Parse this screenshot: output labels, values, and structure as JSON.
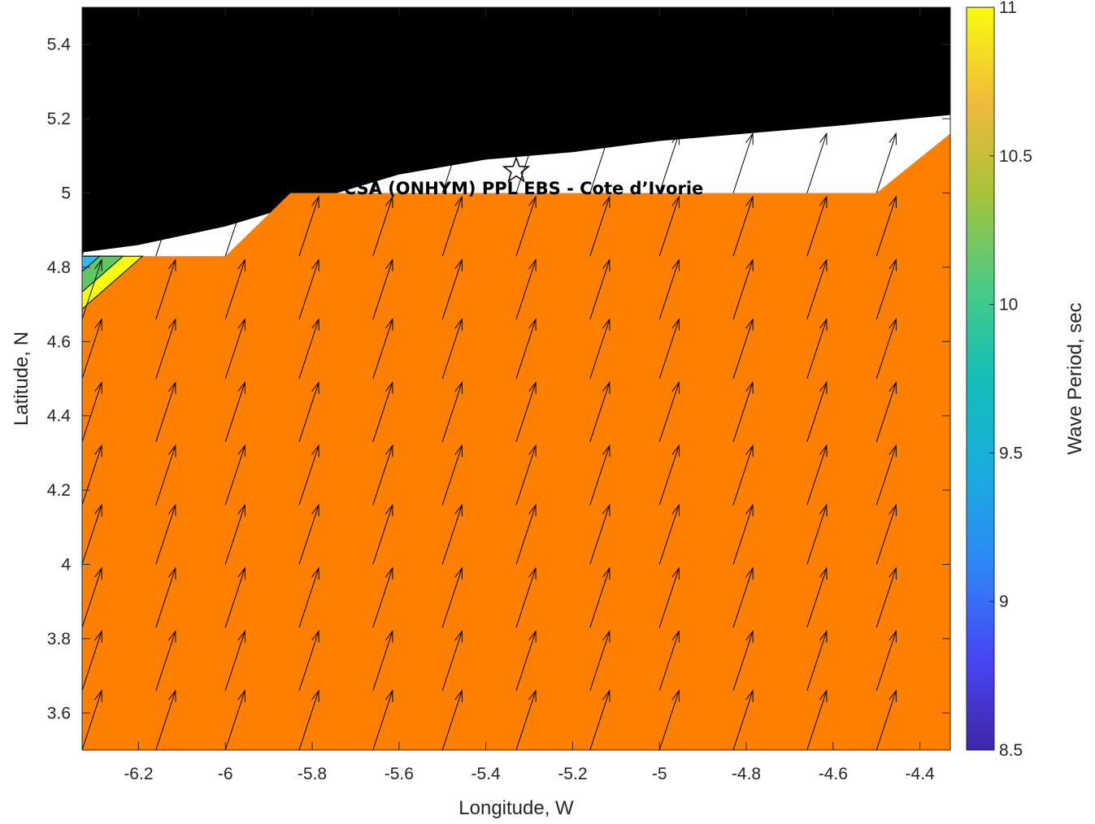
{
  "chart_data": {
    "type": "heatmap",
    "title": "",
    "xlabel": "Longitude, W",
    "ylabel": "Latitude, N",
    "xlim": [
      -6.33,
      -4.33
    ],
    "ylim": [
      3.5,
      5.5
    ],
    "x_ticks": [
      -6.2,
      -6,
      -5.8,
      -5.6,
      -5.4,
      -5.2,
      -5,
      -4.8,
      -4.6,
      -4.4
    ],
    "y_ticks": [
      3.6,
      3.8,
      4,
      4.2,
      4.4,
      4.6,
      4.8,
      5,
      5.2,
      5.4
    ],
    "colorbar": {
      "label": "Wave Period, sec",
      "range": [
        8.5,
        11
      ],
      "ticks": [
        8.5,
        9,
        9.5,
        10,
        10.5,
        11
      ]
    },
    "field": {
      "dominant_value_sec": 10.6,
      "dominant_color": "#FF7F00",
      "domain_boundary_lonlat": [
        [
          -6.33,
          3.5
        ],
        [
          -6.33,
          4.83
        ],
        [
          -6.0,
          4.83
        ],
        [
          -5.85,
          5.0
        ],
        [
          -4.5,
          5.0
        ],
        [
          -4.33,
          5.16
        ],
        [
          -4.33,
          3.5
        ]
      ],
      "corner_gradient_bands": [
        {
          "value_sec": 9.2,
          "color": "#2FB9EE"
        },
        {
          "value_sec": 10.0,
          "color": "#5EC961"
        },
        {
          "value_sec": 10.9,
          "color": "#F9FB0E"
        }
      ]
    },
    "vectors": {
      "description_direction": "toward NNE",
      "dx_deg": 0.045,
      "dy_deg": 0.16,
      "lon_grid": [
        -6.33,
        -6.16,
        -6.0,
        -5.83,
        -5.66,
        -5.5,
        -5.33,
        -5.16,
        -5.0,
        -4.83,
        -4.66,
        -4.5,
        -4.33
      ],
      "lat_grid": [
        3.5,
        3.66,
        3.83,
        4.0,
        4.16,
        4.33,
        4.5,
        4.66,
        4.83,
        5.0
      ]
    },
    "land_color": "#000000",
    "nodata_color": "#FFFFFF",
    "coastline_lonlat": [
      [
        -6.33,
        4.84
      ],
      [
        -6.2,
        4.86
      ],
      [
        -6.0,
        4.91
      ],
      [
        -5.8,
        4.98
      ],
      [
        -5.6,
        5.05
      ],
      [
        -5.4,
        5.09
      ],
      [
        -5.2,
        5.11
      ],
      [
        -5.0,
        5.14
      ],
      [
        -4.8,
        5.16
      ],
      [
        -4.6,
        5.18
      ],
      [
        -4.33,
        5.21
      ]
    ],
    "site_marker": {
      "symbol": "star",
      "lon": -5.33,
      "lat": 5.06
    },
    "annotation": "CSA (ONHYM) PPL EBS  - Cote d’Ivorie"
  }
}
